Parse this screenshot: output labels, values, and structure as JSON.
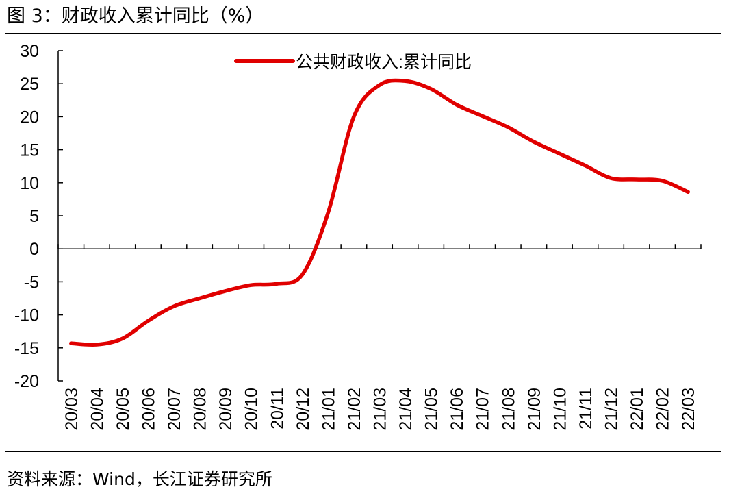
{
  "figure": {
    "title": "图 3：财政收入累计同比（%）",
    "source": "资料来源：Wind，长江证券研究所"
  },
  "colors": {
    "series": "#e00000",
    "axis": "#000000",
    "text": "#000000"
  },
  "chart_data": {
    "type": "line",
    "title": "",
    "xlabel": "",
    "ylabel": "",
    "ylim": [
      -20,
      30
    ],
    "yticks": [
      30,
      25,
      20,
      15,
      10,
      5,
      0,
      -5,
      -10,
      -15,
      -20
    ],
    "grid": false,
    "legend_position": "top-center",
    "categories": [
      "20/03",
      "20/04",
      "20/05",
      "20/06",
      "20/07",
      "20/08",
      "20/09",
      "20/10",
      "20/11",
      "20/12",
      "21/01",
      "21/02",
      "21/03",
      "21/04",
      "21/05",
      "21/06",
      "21/07",
      "21/08",
      "21/09",
      "21/10",
      "21/11",
      "21/12",
      "22/01",
      "22/02",
      "22/03"
    ],
    "series": [
      {
        "name": "公共财政收入:累计同比",
        "values": [
          -14.3,
          -14.5,
          -13.6,
          -10.9,
          -8.7,
          -7.5,
          -6.4,
          -5.5,
          -5.3,
          -3.9,
          5.5,
          20.0,
          24.8,
          25.4,
          24.2,
          21.8,
          20.1,
          18.4,
          16.2,
          14.4,
          12.6,
          10.7,
          10.5,
          10.3,
          8.6
        ]
      }
    ]
  }
}
